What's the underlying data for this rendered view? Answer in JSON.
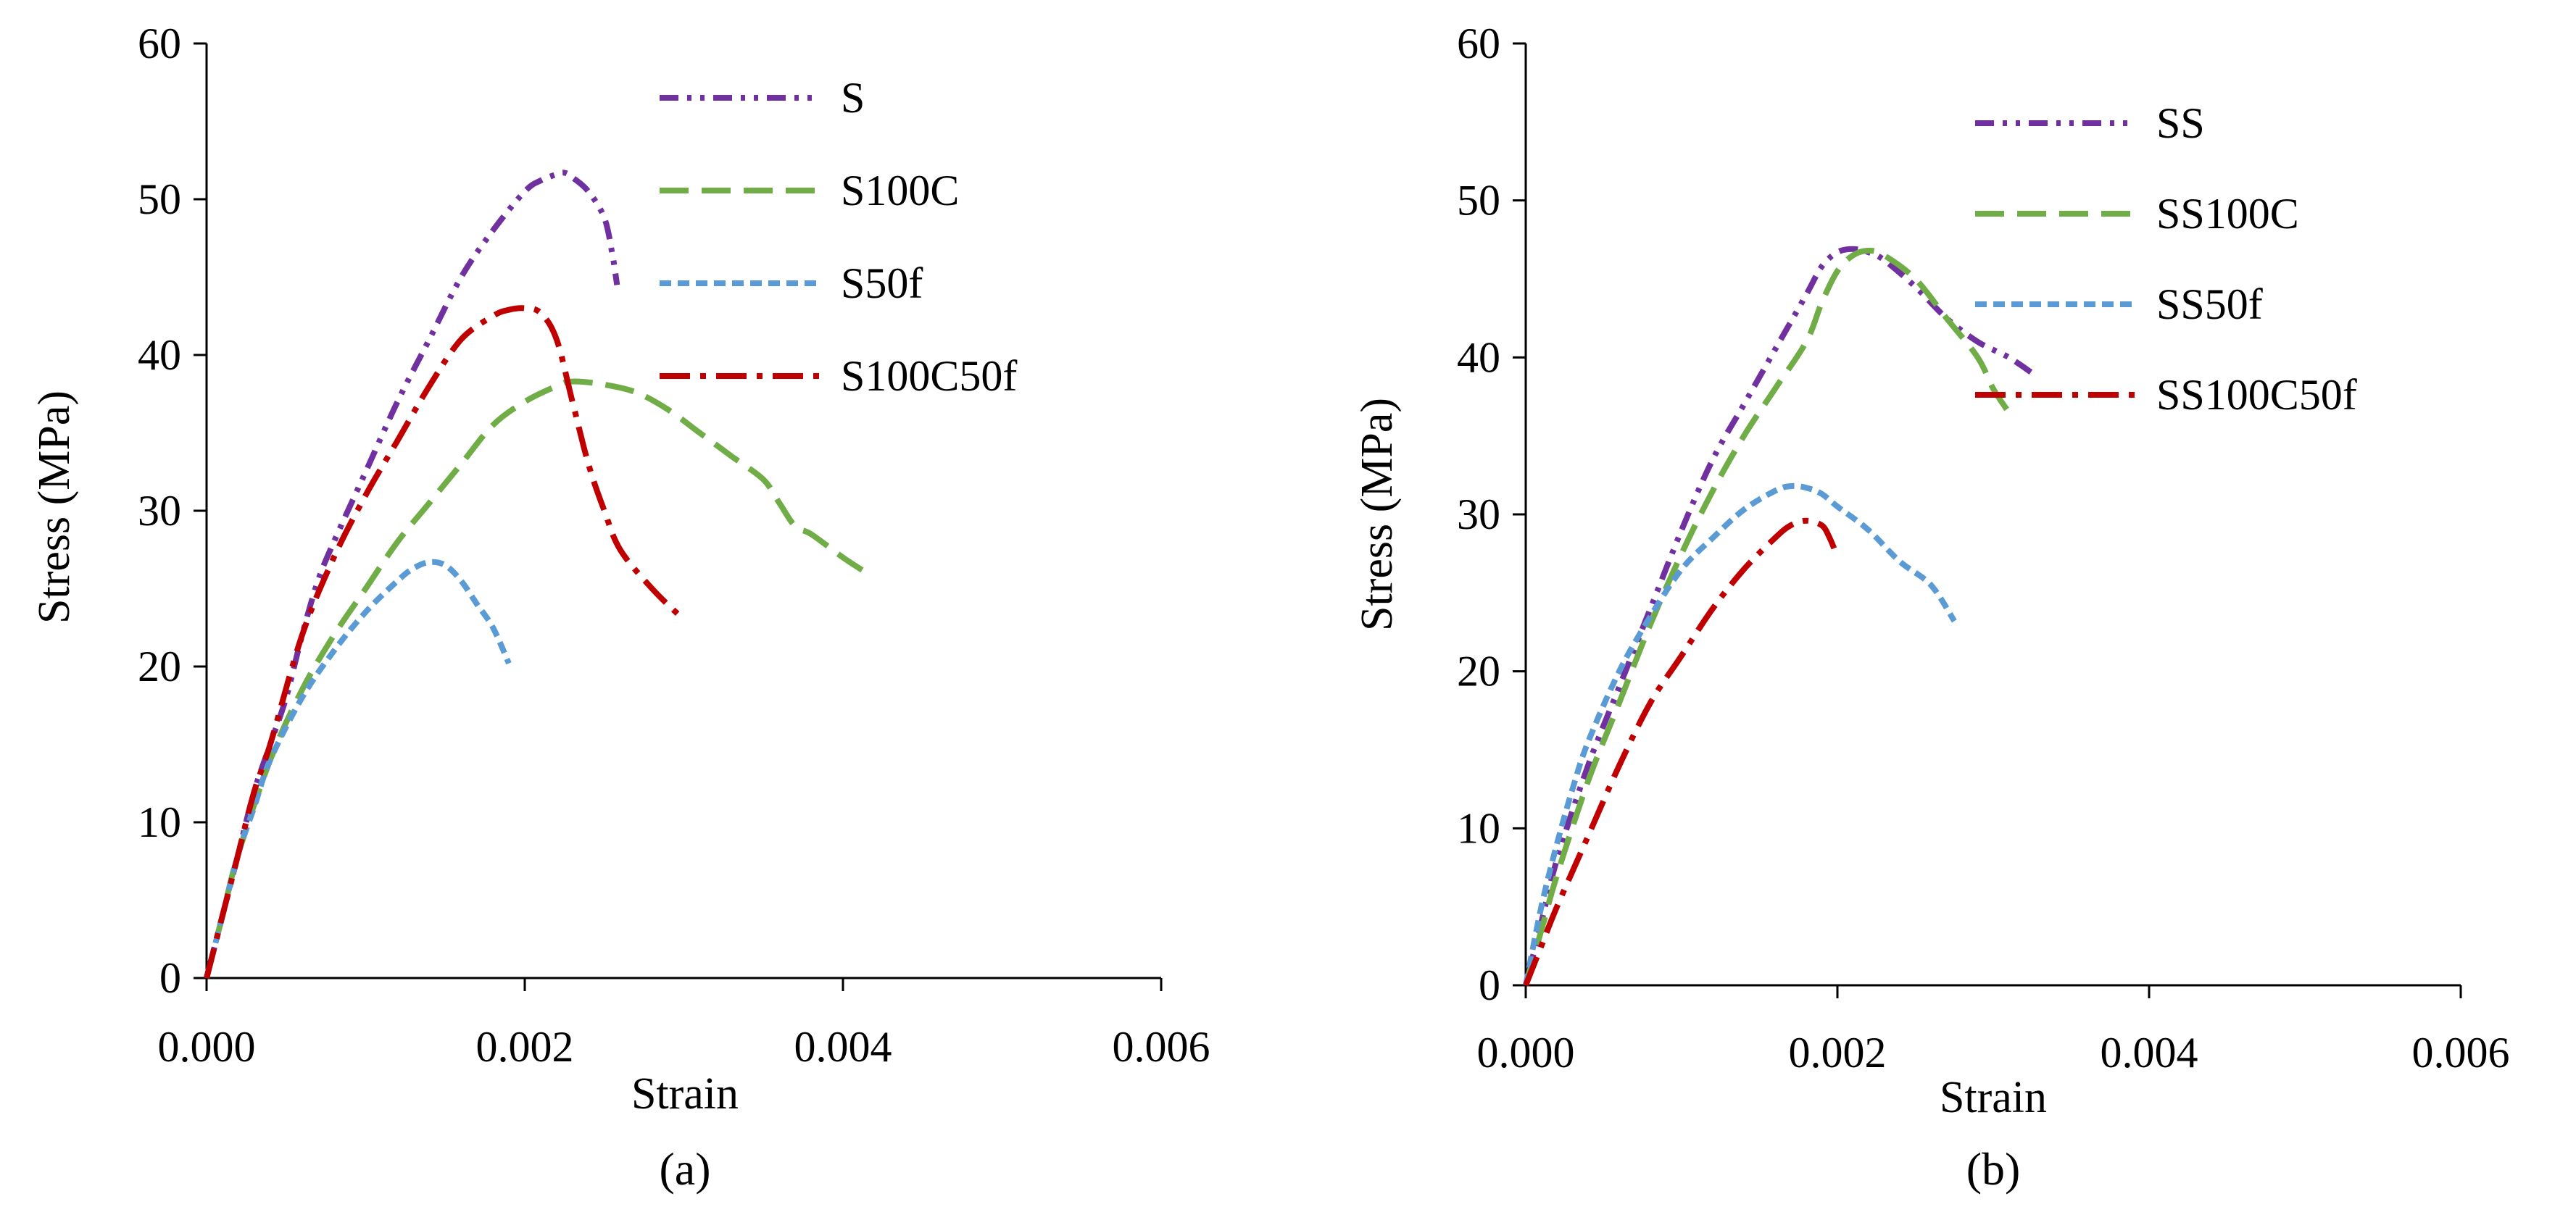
{
  "chart_data": [
    {
      "type": "line",
      "panel_label": "(a)",
      "xlabel": "Strain",
      "ylabel": "Stress (MPa)",
      "xlim": [
        0,
        0.006
      ],
      "ylim": [
        0,
        60
      ],
      "xticks": [
        "0.000",
        "0.002",
        "0.004",
        "0.006"
      ],
      "yticks": [
        "0",
        "10",
        "20",
        "30",
        "40",
        "50",
        "60"
      ],
      "legend_position": "top-right",
      "series": [
        {
          "name": "S",
          "color": "#7030a0",
          "dash": "dash-dot-dot",
          "x": [
            0,
            0.0001,
            0.0002,
            0.0003,
            0.0004,
            0.0005,
            0.0006,
            0.0007,
            0.0008,
            0.001,
            0.0012,
            0.0014,
            0.0016,
            0.0018,
            0.002,
            0.0021,
            0.0022,
            0.00225,
            0.0023,
            0.0024,
            0.0025,
            0.00255,
            0.00258
          ],
          "y": [
            0,
            4,
            8,
            12,
            15,
            18,
            22,
            25.5,
            28,
            32.5,
            37,
            41,
            45,
            48,
            50.5,
            51.2,
            51.6,
            51.7,
            51.4,
            50.5,
            48.8,
            46.5,
            44.5
          ]
        },
        {
          "name": "S100C",
          "color": "#70ad47",
          "dash": "long-dash",
          "x": [
            0,
            0.0001,
            0.0002,
            0.0004,
            0.0006,
            0.0008,
            0.001,
            0.0012,
            0.0014,
            0.0016,
            0.0018,
            0.002,
            0.0022,
            0.0023,
            0.0025,
            0.0027,
            0.0029,
            0.0031,
            0.0033,
            0.0035,
            0.0036,
            0.0037,
            0.0038,
            0.004,
            0.00415
          ],
          "y": [
            0,
            4,
            8,
            14,
            18.5,
            22,
            25,
            28,
            30.5,
            33,
            35.5,
            37,
            38,
            38.3,
            38.1,
            37.6,
            36.5,
            35,
            33.5,
            32,
            30.5,
            29,
            28.5,
            27,
            26
          ]
        },
        {
          "name": "S50f",
          "color": "#5b9bd5",
          "dash": "short-dash",
          "x": [
            0,
            0.0001,
            0.0002,
            0.0003,
            0.0004,
            0.0006,
            0.0008,
            0.001,
            0.0012,
            0.0013,
            0.0014,
            0.0015,
            0.0016,
            0.0017,
            0.0018,
            0.0019
          ],
          "y": [
            0,
            4,
            8,
            11,
            14,
            18,
            21,
            23.5,
            25.5,
            26.3,
            26.7,
            26.5,
            25.5,
            24,
            22.5,
            20.2
          ]
        },
        {
          "name": "S100C50f",
          "color": "#c00000",
          "dash": "dash-dot",
          "x": [
            0,
            0.0001,
            0.0002,
            0.0003,
            0.0004,
            0.0006,
            0.0008,
            0.001,
            0.0012,
            0.0014,
            0.0016,
            0.0018,
            0.0019,
            0.002,
            0.0021,
            0.0022,
            0.0023,
            0.0024,
            0.0025,
            0.0026,
            0.0028,
            0.003
          ],
          "y": [
            0,
            4,
            8,
            12,
            15,
            22,
            27,
            31,
            34.5,
            38,
            41,
            42.5,
            42.9,
            43,
            42.7,
            41,
            37,
            33,
            30,
            27.5,
            25,
            23
          ]
        }
      ]
    },
    {
      "type": "line",
      "panel_label": "(b)",
      "xlabel": "Strain",
      "ylabel": "Stress (MPa)",
      "xlim": [
        0,
        0.006
      ],
      "ylim": [
        0,
        60
      ],
      "xticks": [
        "0.000",
        "0.002",
        "0.004",
        "0.006"
      ],
      "yticks": [
        "0",
        "10",
        "20",
        "30",
        "40",
        "50",
        "60"
      ],
      "legend_position": "top-right",
      "series": [
        {
          "name": "SS",
          "color": "#7030a0",
          "dash": "dash-dot-dot",
          "x": [
            0,
            0.0001,
            0.0002,
            0.0004,
            0.0006,
            0.0008,
            0.001,
            0.0012,
            0.0014,
            0.0016,
            0.0018,
            0.0019,
            0.002,
            0.0021,
            0.0022,
            0.0023,
            0.0025,
            0.0027,
            0.0029,
            0.0031,
            0.00325
          ],
          "y": [
            0,
            4,
            8,
            14,
            19,
            24,
            29,
            33.5,
            37,
            40.5,
            44,
            45.8,
            46.7,
            46.9,
            46.7,
            46.2,
            44.5,
            42.5,
            41,
            40,
            39
          ]
        },
        {
          "name": "SS100C",
          "color": "#70ad47",
          "dash": "long-dash",
          "x": [
            0,
            0.0001,
            0.0002,
            0.0004,
            0.0006,
            0.0008,
            0.001,
            0.0012,
            0.0014,
            0.0016,
            0.0018,
            0.0019,
            0.002,
            0.0021,
            0.0022,
            0.0023,
            0.0025,
            0.0027,
            0.0029,
            0.003,
            0.0031
          ],
          "y": [
            0,
            3.5,
            7,
            13,
            18,
            23,
            27.5,
            31.5,
            35,
            38,
            41,
            43.5,
            45.5,
            46.5,
            46.8,
            46.5,
            45,
            42.5,
            40,
            38,
            36.5
          ]
        },
        {
          "name": "SS50f",
          "color": "#5b9bd5",
          "dash": "short-dash",
          "x": [
            0,
            0.0001,
            0.0002,
            0.0003,
            0.0004,
            0.0006,
            0.0008,
            0.001,
            0.0012,
            0.0014,
            0.0016,
            0.0017,
            0.0018,
            0.0019,
            0.002,
            0.0022,
            0.0024,
            0.0026,
            0.00275
          ],
          "y": [
            0,
            5,
            9,
            12.5,
            15.5,
            20,
            23.5,
            26.5,
            28.5,
            30.3,
            31.5,
            31.8,
            31.7,
            31.3,
            30.5,
            29,
            27,
            25.5,
            23.2
          ]
        },
        {
          "name": "SS100C50f",
          "color": "#c00000",
          "dash": "dash-dot",
          "x": [
            0,
            0.0001,
            0.0002,
            0.0004,
            0.0006,
            0.0008,
            0.001,
            0.0012,
            0.0014,
            0.0016,
            0.0017,
            0.0018,
            0.0019,
            0.00195,
            0.002
          ],
          "y": [
            0,
            2.5,
            5,
            9.5,
            14,
            18,
            21,
            24,
            26.5,
            28.5,
            29.3,
            29.6,
            29.3,
            28.5,
            27.3
          ]
        }
      ]
    }
  ]
}
